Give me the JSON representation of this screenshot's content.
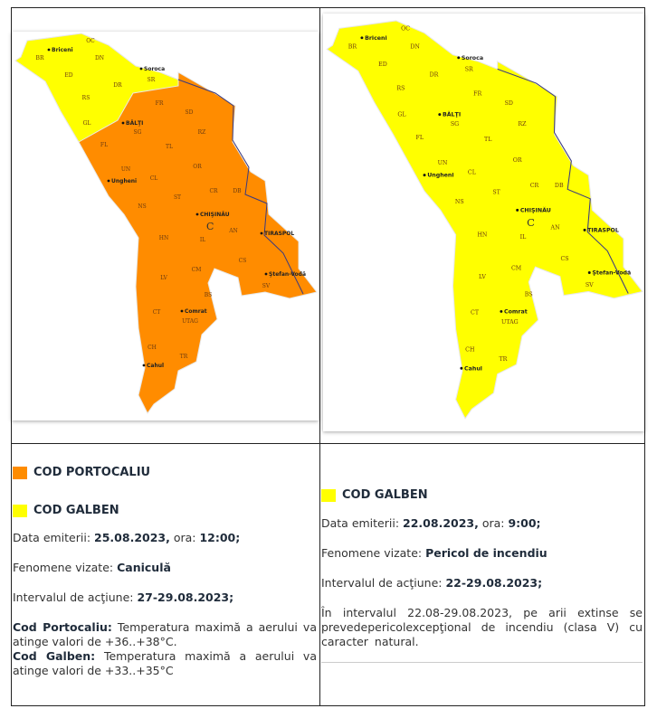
{
  "colors": {
    "orange": "#ff8c00",
    "yellow": "#ffff00",
    "border": "#222222"
  },
  "map_labels": {
    "districts": [
      "BR",
      "OC",
      "DN",
      "ED",
      "SR",
      "DR",
      "RS",
      "FR",
      "SD",
      "GL",
      "SG",
      "RZ",
      "FL",
      "TL",
      "OR",
      "UN",
      "CL",
      "CR",
      "DB",
      "ST",
      "NS",
      "AN",
      "HN",
      "IL",
      "CS",
      "CM",
      "SV",
      "LV",
      "BS",
      "CT",
      "UTAG",
      "CH",
      "TR"
    ],
    "cities": [
      "Briceni",
      "Soroca",
      "BĂLŢI",
      "Ungheni",
      "CHIŞINĂU",
      "TIRASPOL",
      "Ştefan-Vodă",
      "Comrat",
      "Cahul"
    ],
    "capital_letter": "C"
  },
  "left": {
    "legend": [
      {
        "label": "COD PORTOCALIU",
        "color": "#ff8c00"
      },
      {
        "label": "COD GALBEN",
        "color": "#ffff00"
      }
    ],
    "date_label": "Data emiterii: ",
    "date": "25.08.2023,",
    "time_label": " ora: ",
    "time": "12:00;",
    "phen_label": "Fenomene vizate: ",
    "phen": "Caniculă",
    "interval_label": "Intervalul de acţiune: ",
    "interval": "27-29.08.2023;",
    "orange_title": "Cod Portocaliu:",
    "orange_text": " Temperatura maximă a aerului va atinge valori de +36..+38°C.",
    "yellow_title": "Cod Galben:",
    "yellow_text": " Temperatura maximă a aerului va atinge valori de +33..+35°C"
  },
  "right": {
    "legend": [
      {
        "label": "COD GALBEN",
        "color": "#ffff00"
      }
    ],
    "date_label": "Data emiterii: ",
    "date": "22.08.2023,",
    "time_label": " ora: ",
    "time": "9:00;",
    "phen_label": "Fenomene vizate: ",
    "phen": "Pericol de incendiu",
    "interval_label": "Intervalul de acţiune: ",
    "interval": "22-29.08.2023;",
    "note": "În intervalul 22.08-29.08.2023, pe arii extinse se prevedepericolexcepţional de incendiu (clasa V) cu caracter natural."
  }
}
